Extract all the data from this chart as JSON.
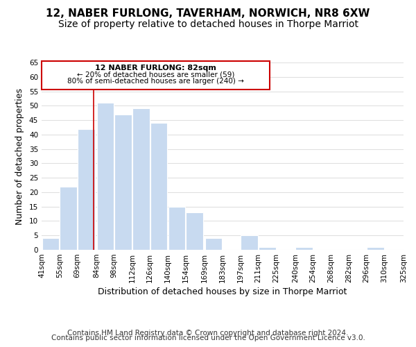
{
  "title": "12, NABER FURLONG, TAVERHAM, NORWICH, NR8 6XW",
  "subtitle": "Size of property relative to detached houses in Thorpe Marriot",
  "xlabel": "Distribution of detached houses by size in Thorpe Marriot",
  "ylabel": "Number of detached properties",
  "footer_line1": "Contains HM Land Registry data © Crown copyright and database right 2024.",
  "footer_line2": "Contains public sector information licensed under the Open Government Licence v3.0.",
  "bar_left_edges": [
    41,
    55,
    69,
    84,
    98,
    112,
    126,
    140,
    154,
    169,
    183,
    197,
    211,
    225,
    240,
    254,
    268,
    282,
    296,
    310
  ],
  "bar_heights": [
    4,
    22,
    42,
    51,
    47,
    49,
    44,
    15,
    13,
    4,
    0,
    5,
    1,
    0,
    1,
    0,
    0,
    0,
    1,
    0
  ],
  "bar_widths": [
    14,
    14,
    14,
    14,
    14,
    14,
    14,
    14,
    14,
    14,
    14,
    14,
    14,
    14,
    14,
    14,
    14,
    14,
    14,
    15
  ],
  "bar_color": "#c8daf0",
  "bar_edgecolor": "#ffffff",
  "xlim": [
    41,
    325
  ],
  "ylim": [
    0,
    65
  ],
  "yticks": [
    0,
    5,
    10,
    15,
    20,
    25,
    30,
    35,
    40,
    45,
    50,
    55,
    60,
    65
  ],
  "xtick_labels": [
    "41sqm",
    "55sqm",
    "69sqm",
    "84sqm",
    "98sqm",
    "112sqm",
    "126sqm",
    "140sqm",
    "154sqm",
    "169sqm",
    "183sqm",
    "197sqm",
    "211sqm",
    "225sqm",
    "240sqm",
    "254sqm",
    "268sqm",
    "282sqm",
    "296sqm",
    "310sqm",
    "325sqm"
  ],
  "xtick_positions": [
    41,
    55,
    69,
    84,
    98,
    112,
    126,
    140,
    154,
    169,
    183,
    197,
    211,
    225,
    240,
    254,
    268,
    282,
    296,
    310,
    325
  ],
  "property_line_x": 82,
  "annotation_line1": "12 NABER FURLONG: 82sqm",
  "annotation_line2": "← 20% of detached houses are smaller (59)",
  "annotation_line3": "80% of semi-detached houses are larger (240) →",
  "annotation_line_color": "#cc0000",
  "grid_color": "#e0e0e0",
  "background_color": "#ffffff",
  "title_fontsize": 11,
  "subtitle_fontsize": 10,
  "axis_label_fontsize": 9,
  "tick_fontsize": 7.5,
  "footer_fontsize": 7.5
}
